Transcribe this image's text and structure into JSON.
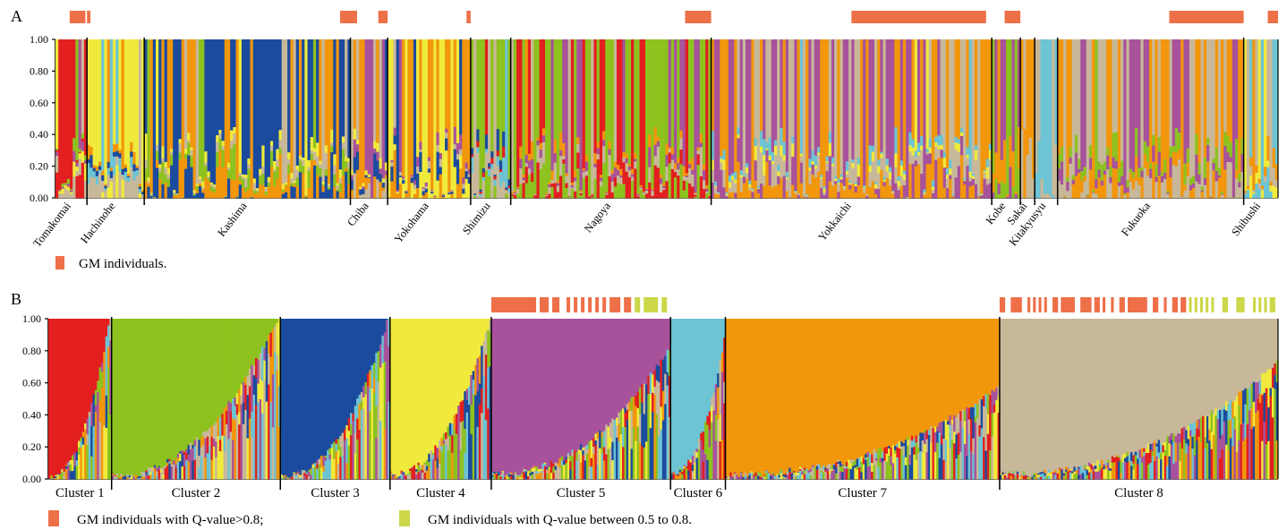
{
  "chart_data": [
    {
      "type": "bar",
      "subtype": "stacked-bar (STRUCTURE plot by sampling site)",
      "panel_label": "A",
      "ylim": [
        0,
        1
      ],
      "yticks": [
        "0.00",
        "0.20",
        "0.40",
        "0.60",
        "0.80",
        "1.00"
      ],
      "legend": {
        "marker_color": "#EE7049",
        "text": "GM individuals."
      },
      "groups": [
        {
          "name": "Tomakomai",
          "n": 11,
          "profile": [
            [
              0,
              0.48
            ],
            [
              7,
              0.16
            ],
            [
              3,
              0.15
            ],
            [
              4,
              0.08
            ],
            [
              0,
              0.08
            ],
            [
              1,
              0.05
            ]
          ],
          "gm": [
            [
              0.45,
              0.95
            ]
          ]
        },
        {
          "name": "Hachinohe",
          "n": 20,
          "profile": [
            [
              3,
              0.74
            ],
            [
              7,
              0.12
            ],
            [
              5,
              0.06
            ],
            [
              2,
              0.04
            ],
            [
              6,
              0.04
            ]
          ],
          "gm": [
            [
              0.0,
              0.06
            ]
          ]
        },
        {
          "name": "Kashima",
          "n": 72,
          "profile": [
            [
              2,
              0.46
            ],
            [
              6,
              0.28
            ],
            [
              1,
              0.12
            ],
            [
              7,
              0.08
            ],
            [
              3,
              0.06
            ]
          ],
          "gm": [
            [
              0.95,
              1.0
            ]
          ]
        },
        {
          "name": "Chiba",
          "n": 13,
          "profile": [
            [
              7,
              0.52
            ],
            [
              6,
              0.2
            ],
            [
              2,
              0.12
            ],
            [
              4,
              0.1
            ],
            [
              3,
              0.06
            ]
          ],
          "gm": [
            [
              0.0,
              0.18
            ],
            [
              0.75,
              1.0
            ]
          ]
        },
        {
          "name": "Yokohama",
          "n": 29,
          "profile": [
            [
              6,
              0.42
            ],
            [
              3,
              0.36
            ],
            [
              2,
              0.1
            ],
            [
              7,
              0.07
            ],
            [
              4,
              0.05
            ]
          ],
          "gm": [
            [
              0.95,
              1.0
            ]
          ]
        },
        {
          "name": "Shimizu",
          "n": 14,
          "profile": [
            [
              1,
              0.55
            ],
            [
              7,
              0.18
            ],
            [
              5,
              0.12
            ],
            [
              0,
              0.08
            ],
            [
              2,
              0.07
            ]
          ],
          "gm": []
        },
        {
          "name": "Nagoya",
          "n": 70,
          "profile": [
            [
              1,
              0.44
            ],
            [
              0,
              0.32
            ],
            [
              7,
              0.1
            ],
            [
              4,
              0.09
            ],
            [
              6,
              0.05
            ]
          ],
          "gm": [
            [
              0.87,
              1.0
            ]
          ]
        },
        {
          "name": "Yokkaichi",
          "n": 98,
          "profile": [
            [
              6,
              0.34
            ],
            [
              4,
              0.33
            ],
            [
              7,
              0.25
            ],
            [
              3,
              0.04
            ],
            [
              5,
              0.04
            ]
          ],
          "gm": [
            [
              0.5,
              0.98
            ]
          ]
        },
        {
          "name": "Kobe",
          "n": 10,
          "profile": [
            [
              1,
              0.48
            ],
            [
              4,
              0.42
            ],
            [
              6,
              0.1
            ]
          ],
          "gm": [
            [
              0.45,
              1.0
            ]
          ]
        },
        {
          "name": "Sakai",
          "n": 5,
          "profile": [
            [
              6,
              0.75
            ],
            [
              7,
              0.25
            ]
          ],
          "gm": []
        },
        {
          "name": "Kitakyusyu",
          "n": 8,
          "profile": [
            [
              5,
              0.82
            ],
            [
              7,
              0.18
            ]
          ],
          "gm": []
        },
        {
          "name": "Fukuoka",
          "n": 65,
          "profile": [
            [
              7,
              0.42
            ],
            [
              6,
              0.32
            ],
            [
              4,
              0.2
            ],
            [
              1,
              0.06
            ]
          ],
          "gm": [
            [
              0.6,
              1.0
            ]
          ]
        },
        {
          "name": "Shibushi",
          "n": 12,
          "profile": [
            [
              5,
              0.34
            ],
            [
              3,
              0.26
            ],
            [
              7,
              0.26
            ],
            [
              6,
              0.14
            ]
          ],
          "gm": [
            [
              0.7,
              1.0
            ]
          ]
        }
      ]
    },
    {
      "type": "bar",
      "subtype": "stacked-bar (STRUCTURE plot sorted by cluster)",
      "panel_label": "B",
      "ylim": [
        0,
        1
      ],
      "yticks": [
        "0.00",
        "0.20",
        "0.40",
        "0.60",
        "0.80",
        "1.00"
      ],
      "legend": [
        {
          "marker_color": "#EE7049",
          "text": "GM individuals with Q-value>0.8;"
        },
        {
          "marker_color": "#CCD84A",
          "text": "GM individuals with Q-value between 0.5 to 0.8."
        }
      ],
      "groups": [
        {
          "name": "Cluster 1",
          "n": 30,
          "dominant": 0,
          "q_max": 1.0,
          "q_min": 0.0
        },
        {
          "name": "Cluster 2",
          "n": 80,
          "dominant": 1,
          "q_max": 1.0,
          "q_min": 0.0
        },
        {
          "name": "Cluster 3",
          "n": 52,
          "dominant": 2,
          "q_max": 1.0,
          "q_min": 0.0
        },
        {
          "name": "Cluster 4",
          "n": 48,
          "dominant": 3,
          "q_max": 0.99,
          "q_min": 0.03
        },
        {
          "name": "Cluster 5",
          "n": 85,
          "dominant": 4,
          "q_max": 0.99,
          "q_min": 0.2
        },
        {
          "name": "Cluster 6",
          "n": 26,
          "dominant": 5,
          "q_max": 0.98,
          "q_min": 0.15
        },
        {
          "name": "Cluster 7",
          "n": 130,
          "dominant": 6,
          "q_max": 0.99,
          "q_min": 0.45
        },
        {
          "name": "Cluster 8",
          "n": 132,
          "dominant": 7,
          "q_max": 0.99,
          "q_min": 0.3
        }
      ]
    }
  ],
  "colors": {
    "cluster_colors": [
      "#E31F1F",
      "#8DC21F",
      "#1B4B9E",
      "#F0EA3C",
      "#A8529B",
      "#6CC4D4",
      "#F2960C",
      "#C8B89A"
    ],
    "gm_high": "#EE7049",
    "gm_mid": "#CCD84A",
    "axis": "#000000"
  }
}
